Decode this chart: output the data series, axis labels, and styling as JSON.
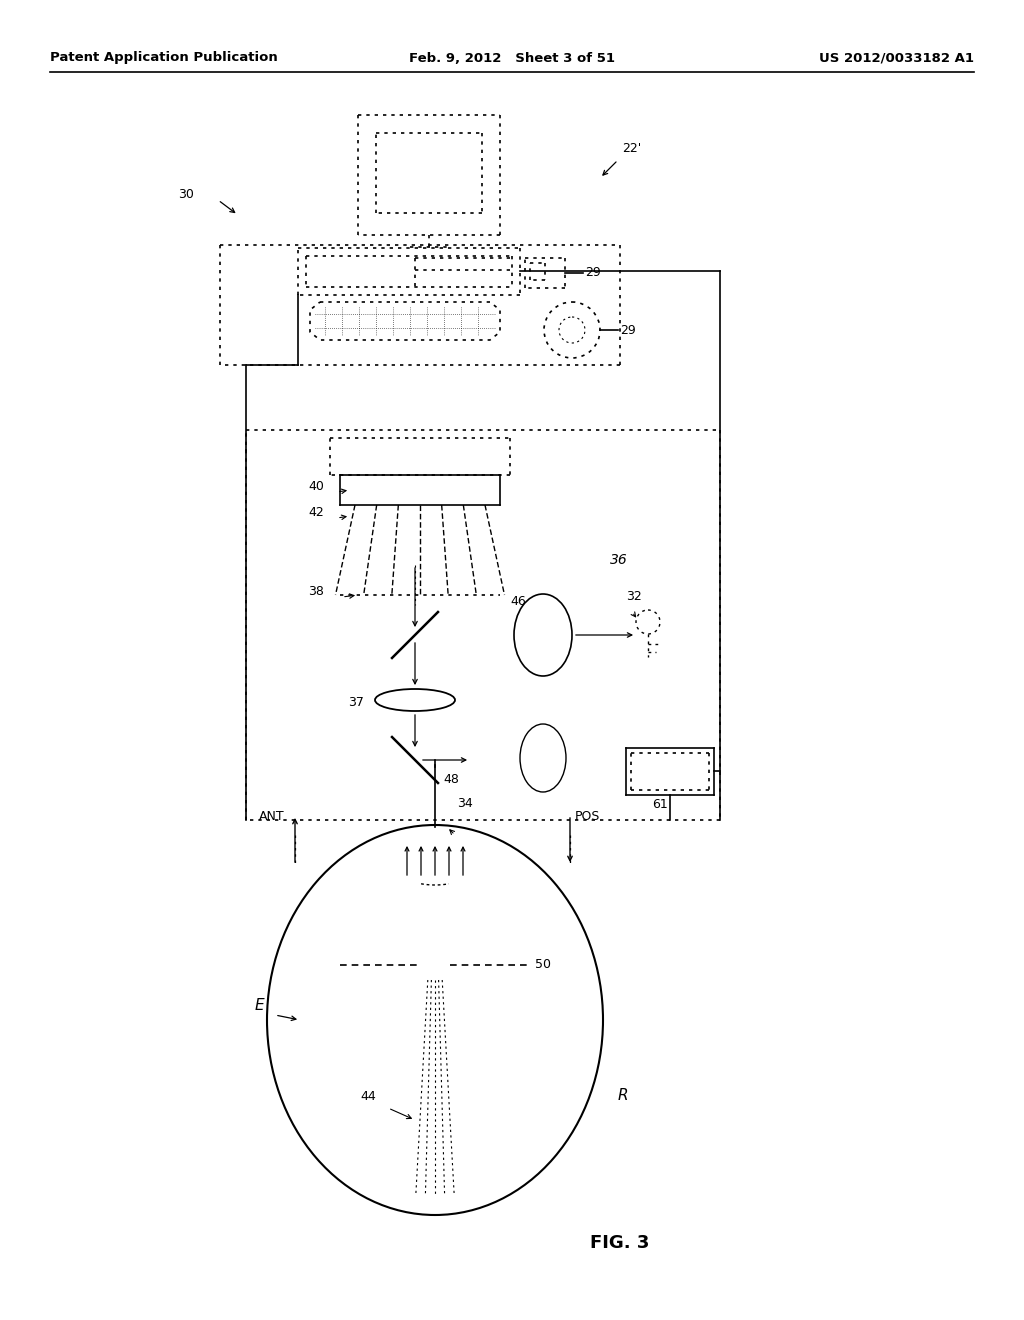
{
  "bg_color": "#ffffff",
  "header_left": "Patent Application Publication",
  "header_center": "Feb. 9, 2012   Sheet 3 of 51",
  "header_right": "US 2012/0033182 A1",
  "fig_label": "FIG. 3"
}
